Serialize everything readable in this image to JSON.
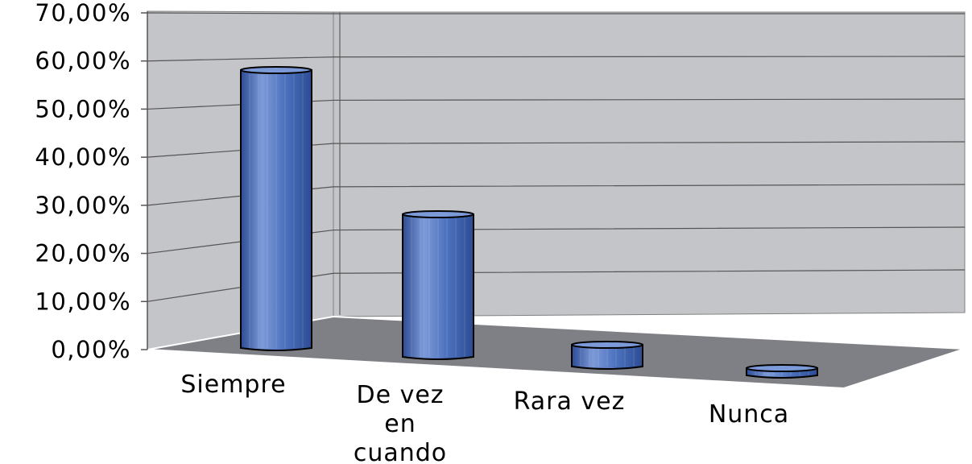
{
  "chart_data": {
    "type": "bar",
    "categories": [
      "Siempre",
      "De vez en cuando",
      "Rara vez",
      "Nunca"
    ],
    "category_label_lines": [
      [
        "Siempre"
      ],
      [
        "De vez",
        "en",
        "cuando"
      ],
      [
        "Rara vez"
      ],
      [
        "Nunca"
      ]
    ],
    "values": [
      57.5,
      29.5,
      4.5,
      1.5
    ],
    "ylim": [
      0,
      70
    ],
    "yticks": [
      "0,00%",
      "10,00%",
      "20,00%",
      "30,00%",
      "40,00%",
      "50,00%",
      "60,00%",
      "70,00%"
    ],
    "title": "",
    "xlabel": "",
    "ylabel": "",
    "grid": true,
    "style": "3d-cylinder",
    "colors": {
      "bar": "#4f74c0",
      "bar_dark": "#2c4c94",
      "bar_light": "#7d9ad8",
      "wall": "#c4c5c9",
      "floor": "#7e8086",
      "gridline": "#555555"
    }
  }
}
